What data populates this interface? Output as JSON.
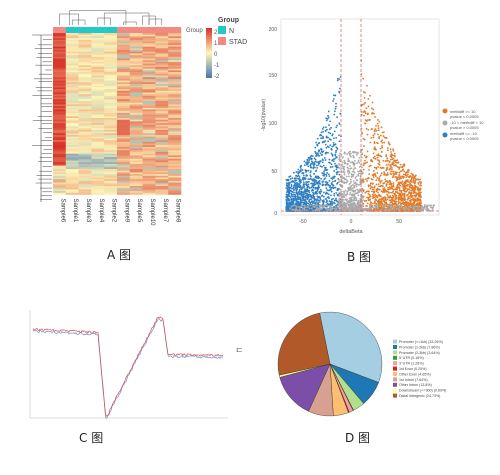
{
  "captions": {
    "a": "A 图",
    "b": "B 图",
    "c": "C 图",
    "d": "D 图"
  },
  "panel_a": {
    "legend_title": "Group",
    "legend_items": [
      {
        "label": "N",
        "color": "#23c9c9"
      },
      {
        "label": "STAD",
        "color": "#f08a82"
      }
    ],
    "scale_ticks": [
      "2",
      "1",
      "0",
      "-1",
      "-2"
    ],
    "group_bar_label": "Group",
    "samples": [
      "Sample6",
      "Sample1",
      "Sample3",
      "Sample4",
      "Sample2",
      "Sample9",
      "Sample5",
      "Sample10",
      "Sample7",
      "Sample8"
    ],
    "colors": {
      "high": "#d73027",
      "mid": "#fff6b8",
      "low": "#4575b4"
    }
  },
  "panel_b": {
    "ylabel": "-log10(pvalue)",
    "xlabel": "deltaBeta",
    "y_ticks": [
      "0",
      "50",
      "100",
      "150",
      "200"
    ],
    "x_ticks": [
      "-50",
      "0",
      "50"
    ],
    "legend": [
      {
        "label": "methdiff >= 10",
        "sub": "pvalue < 0.0005",
        "color": "#e07b2a"
      },
      {
        "label": "-10 < methdiff < 10",
        "sub": "pvalue > 0.0005",
        "color": "#aaaaaa"
      },
      {
        "label": "methdiff <= -10",
        "sub": "pvalue < 0.0005",
        "color": "#2f7fc1"
      }
    ]
  },
  "panel_c": {
    "legend_glyph": "⊏"
  },
  "panel_d": {
    "chart_data": {
      "type": "pie",
      "categories": [
        "Promoter (<=1kb) (33.26%)",
        "Promoter (1-2kb) (7.86%)",
        "Promoter (2-3kb) (3.64%)",
        "5' UTR (0.16%)",
        "3' UTR (1.28%)",
        "1st Exon (0.25%)",
        "Other Exon (4.65%)",
        "1st Intron (7.64%)",
        "Other Intron (13.8%)",
        "Downstream (<=300) (0.69%)",
        "Distal Intergenic (24.73%)"
      ],
      "values": [
        33.26,
        7.86,
        3.64,
        0.16,
        1.28,
        0.25,
        4.65,
        7.64,
        13.8,
        0.69,
        24.73
      ],
      "colors": [
        "#a6cee3",
        "#1f78b4",
        "#b2df8a",
        "#33a02c",
        "#fb9a99",
        "#e31a1c",
        "#fdbf6f",
        "#d8a090",
        "#7b4fa8",
        "#ffff99",
        "#b15928"
      ]
    }
  }
}
